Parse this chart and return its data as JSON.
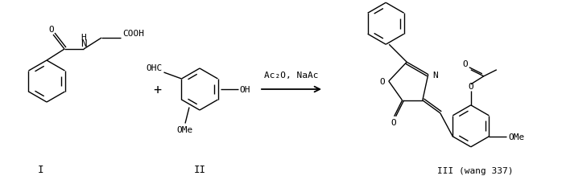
{
  "background_color": "#ffffff",
  "figure_width": 6.98,
  "figure_height": 2.3,
  "dpi": 100,
  "font_family": "monospace",
  "label_I": "I",
  "label_II": "II",
  "label_III": "III (wang 337)",
  "reagent_text": "Ac₂O, NaAc",
  "plus_sign": "+",
  "text_color": "#000000",
  "line_color": "#000000"
}
